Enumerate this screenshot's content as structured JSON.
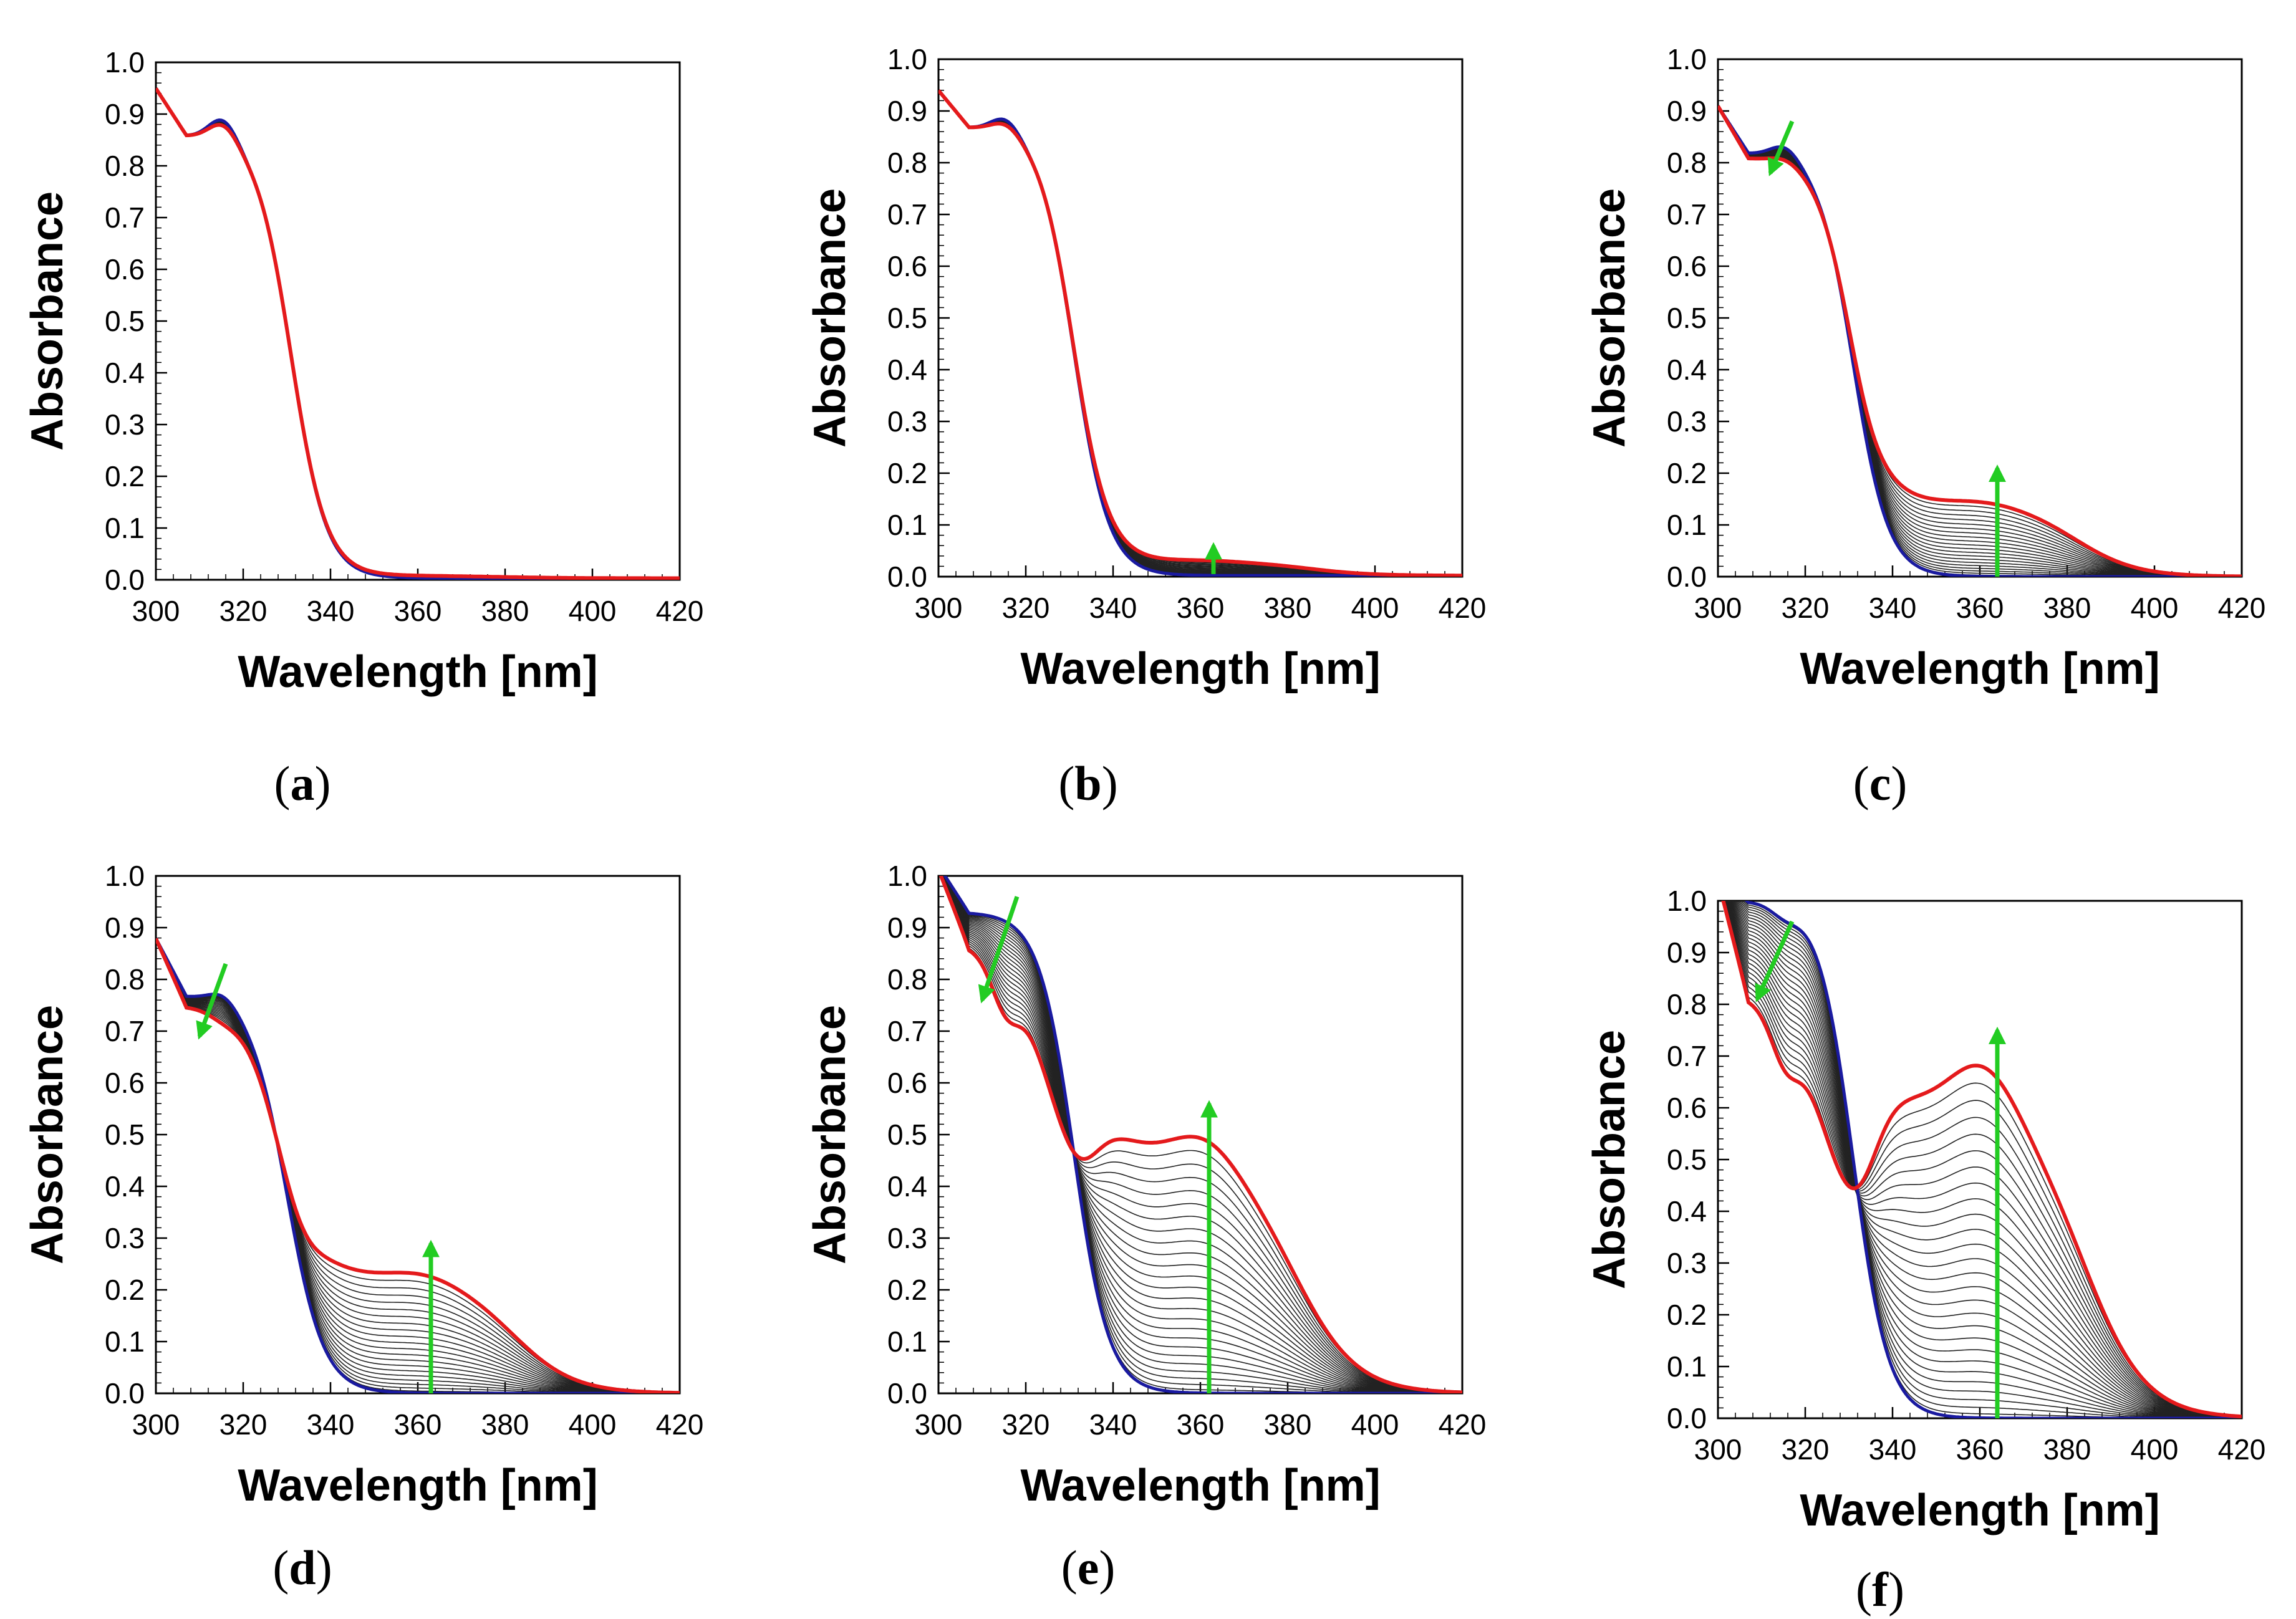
{
  "figure": {
    "labels": [
      "a",
      "b",
      "c",
      "d",
      "e",
      "f"
    ]
  },
  "colors": {
    "grey_curves": "#222222",
    "initial_curve": "#1a1aa0",
    "final_curve": "#e41a1c",
    "arrow": "#22cc22"
  },
  "chart_data": [
    {
      "id": "a",
      "type": "line",
      "title": "",
      "xlabel": "Wavelength [nm]",
      "ylabel": "Absorbance",
      "xlim": [
        300,
        420
      ],
      "ylim": [
        0,
        1.0
      ],
      "xticks": [
        300,
        320,
        340,
        360,
        380,
        400,
        420
      ],
      "yticks": [
        0.0,
        0.1,
        0.2,
        0.3,
        0.4,
        0.5,
        0.6,
        0.7,
        0.8,
        0.9,
        1.0
      ],
      "series_count": 20,
      "short_band": {
        "start": 0.95,
        "dip_at_307": 0.86,
        "peak_at_315": 0.905,
        "edge_center": 331,
        "edge_width": 4.0,
        "tail": 0.003
      },
      "final_short_band": {
        "start": 0.95,
        "dip_at_307": 0.86,
        "peak_at_315": 0.895,
        "edge_center": 331,
        "edge_width": 4.0,
        "tail": 0.003
      },
      "long_band": {
        "peak_max": 0.005,
        "dip_ratio": 0.95,
        "edge_center": 380,
        "edge_width": 8.0
      },
      "arrows": []
    },
    {
      "id": "b",
      "type": "line",
      "title": "",
      "xlabel": "Wavelength [nm]",
      "ylabel": "Absorbance",
      "xlim": [
        300,
        420
      ],
      "ylim": [
        0,
        1.0
      ],
      "xticks": [
        300,
        320,
        340,
        360,
        380,
        400,
        420
      ],
      "yticks": [
        0.0,
        0.1,
        0.2,
        0.3,
        0.4,
        0.5,
        0.6,
        0.7,
        0.8,
        0.9,
        1.0
      ],
      "series_count": 20,
      "short_band": {
        "start": 0.94,
        "dip_at_307": 0.87,
        "peak_at_315": 0.9,
        "edge_center": 331,
        "edge_width": 4.0,
        "tail": 0.002
      },
      "final_short_band": {
        "start": 0.94,
        "dip_at_307": 0.87,
        "peak_at_315": 0.89,
        "edge_center": 331,
        "edge_width": 4.0,
        "tail": 0.002
      },
      "long_band": {
        "peak_max": 0.03,
        "dip_ratio": 0.9,
        "edge_center": 385,
        "edge_width": 7.0
      },
      "arrows": [
        {
          "x0": 363,
          "y0": 0.005,
          "x1": 363,
          "y1": 0.06
        }
      ]
    },
    {
      "id": "c",
      "type": "line",
      "title": "",
      "xlabel": "Wavelength [nm]",
      "ylabel": "Absorbance",
      "xlim": [
        300,
        420
      ],
      "ylim": [
        0,
        1.0
      ],
      "xticks": [
        300,
        320,
        340,
        360,
        380,
        400,
        420
      ],
      "yticks": [
        0.0,
        0.1,
        0.2,
        0.3,
        0.4,
        0.5,
        0.6,
        0.7,
        0.8,
        0.9,
        1.0
      ],
      "series_count": 22,
      "short_band": {
        "start": 0.91,
        "dip_at_307": 0.82,
        "peak_at_315": 0.845,
        "edge_center": 331,
        "edge_width": 4.0,
        "tail": 0.0
      },
      "final_short_band": {
        "start": 0.91,
        "dip_at_307": 0.81,
        "peak_at_315": 0.82,
        "edge_center": 331,
        "edge_width": 4.0,
        "tail": 0.0
      },
      "long_band": {
        "peak_max": 0.15,
        "dip_ratio": 0.95,
        "edge_center": 382,
        "edge_width": 7.0
      },
      "arrows": [
        {
          "x0": 317,
          "y0": 0.88,
          "x1": 312,
          "y1": 0.78
        },
        {
          "x0": 364,
          "y0": 0.0,
          "x1": 364,
          "y1": 0.21
        }
      ]
    },
    {
      "id": "d",
      "type": "line",
      "title": "",
      "xlabel": "Wavelength [nm]",
      "ylabel": "Absorbance",
      "xlim": [
        300,
        420
      ],
      "ylim": [
        0,
        1.0
      ],
      "xticks": [
        300,
        320,
        340,
        360,
        380,
        400,
        420
      ],
      "yticks": [
        0.0,
        0.1,
        0.2,
        0.3,
        0.4,
        0.5,
        0.6,
        0.7,
        0.8,
        0.9,
        1.0
      ],
      "series_count": 22,
      "short_band": {
        "start": 0.88,
        "dip_at_307": 0.77,
        "peak_at_315": 0.79,
        "edge_center": 330,
        "edge_width": 4.2,
        "tail": 0.0
      },
      "final_short_band": {
        "start": 0.88,
        "dip_at_307": 0.75,
        "peak_at_315": 0.74,
        "edge_center": 330,
        "edge_width": 4.5,
        "tail": 0.0
      },
      "long_band": {
        "peak_max": 0.24,
        "dip_ratio": 0.93,
        "edge_center": 382,
        "edge_width": 7.0
      },
      "arrows": [
        {
          "x0": 316,
          "y0": 0.83,
          "x1": 310,
          "y1": 0.69
        },
        {
          "x0": 363,
          "y0": 0.0,
          "x1": 363,
          "y1": 0.29
        }
      ]
    },
    {
      "id": "e",
      "type": "line",
      "title": "",
      "xlabel": "Wavelength [nm]",
      "ylabel": "Absorbance",
      "xlim": [
        300,
        420
      ],
      "ylim": [
        0,
        1.0
      ],
      "xticks": [
        300,
        320,
        340,
        360,
        380,
        400,
        420
      ],
      "yticks": [
        0.0,
        0.1,
        0.2,
        0.3,
        0.4,
        0.5,
        0.6,
        0.7,
        0.8,
        0.9,
        1.0
      ],
      "series_count": 26,
      "short_band": {
        "start": 1.02,
        "dip_at_307": 0.93,
        "peak_at_315": 0.93,
        "edge_center": 331,
        "edge_width": 4.0,
        "tail": 0.0
      },
      "final_short_band": {
        "start": 1.02,
        "dip_at_307": 0.88,
        "peak_at_315": 0.8,
        "edge_center": 329,
        "edge_width": 6.0,
        "tail": 0.0
      },
      "long_band": {
        "peak_max": 0.51,
        "dip_ratio": 0.87,
        "edge_center": 382,
        "edge_width": 7.0
      },
      "arrows": [
        {
          "x0": 318,
          "y0": 0.96,
          "x1": 310,
          "y1": 0.76
        },
        {
          "x0": 362,
          "y0": 0.0,
          "x1": 362,
          "y1": 0.56
        }
      ]
    },
    {
      "id": "f",
      "type": "line",
      "title": "",
      "xlabel": "Wavelength [nm]",
      "ylabel": "Absorbance",
      "xlim": [
        300,
        420
      ],
      "ylim": [
        0,
        1.0
      ],
      "xticks": [
        300,
        320,
        340,
        360,
        380,
        400,
        420
      ],
      "yticks": [
        0.0,
        0.1,
        0.2,
        0.3,
        0.4,
        0.5,
        0.6,
        0.7,
        0.8,
        0.9,
        1.0
      ],
      "series_count": 28,
      "short_band": {
        "start": 1.05,
        "dip_at_307": 1.0,
        "peak_at_315": 0.98,
        "edge_center": 331,
        "edge_width": 4.0,
        "tail": 0.0
      },
      "final_short_band": {
        "start": 1.05,
        "dip_at_307": 0.83,
        "peak_at_315": 0.75,
        "edge_center": 328,
        "edge_width": 6.0,
        "tail": 0.0
      },
      "long_band": {
        "peak_max": 0.7,
        "dip_ratio": 0.84,
        "edge_center": 384,
        "edge_width": 7.0
      },
      "arrows": [
        {
          "x0": 317,
          "y0": 0.96,
          "x1": 309,
          "y1": 0.81
        },
        {
          "x0": 364,
          "y0": 0.0,
          "x1": 364,
          "y1": 0.75
        }
      ]
    }
  ]
}
